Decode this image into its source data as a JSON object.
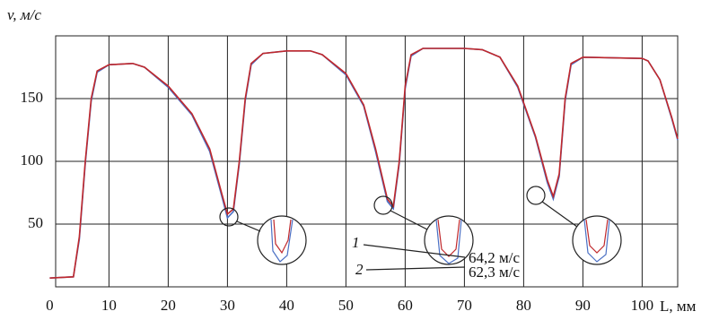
{
  "chart_data": {
    "type": "line",
    "y_label": "v, м/с",
    "x_label": "L, мм",
    "x": [
      0,
      4,
      5,
      6,
      7,
      8,
      10,
      14,
      16,
      20,
      24,
      27,
      29,
      30,
      31,
      32,
      33,
      34,
      36,
      40,
      44,
      46,
      50,
      53,
      55,
      57,
      58,
      59,
      60,
      61,
      63,
      70,
      73,
      76,
      79,
      82,
      84,
      85,
      86,
      87,
      88,
      90,
      100,
      101,
      103,
      105,
      106
    ],
    "series": [
      {
        "name": "1",
        "color": "#c0282c",
        "values": [
          7,
          8,
          40,
          100,
          150,
          172,
          177,
          178,
          175,
          160,
          138,
          110,
          75,
          58,
          62,
          100,
          150,
          178,
          186,
          188,
          188,
          185,
          170,
          145,
          110,
          70,
          64.2,
          100,
          160,
          185,
          190,
          190,
          189,
          183,
          160,
          120,
          85,
          72,
          90,
          150,
          178,
          183,
          182,
          180,
          165,
          135,
          118
        ]
      },
      {
        "name": "2",
        "color": "#4a6fc4",
        "values": [
          7,
          8,
          38,
          98,
          148,
          171,
          177,
          178,
          175,
          159,
          137,
          108,
          73,
          55,
          60,
          98,
          148,
          177,
          186,
          188,
          188,
          185,
          169,
          144,
          108,
          68,
          62.3,
          98,
          158,
          184,
          190,
          190,
          189,
          183,
          159,
          119,
          83,
          70,
          88,
          148,
          177,
          183,
          182,
          180,
          165,
          134,
          117
        ]
      }
    ],
    "annotations": [
      "64,2 м/с",
      "62,3 м/с"
    ],
    "xlim": [
      1,
      106
    ],
    "xticks": [
      0,
      10,
      20,
      30,
      40,
      50,
      60,
      70,
      80,
      90,
      100
    ],
    "ylim": [
      0,
      200
    ],
    "yticks": [
      50,
      100,
      150
    ],
    "grid": true
  }
}
